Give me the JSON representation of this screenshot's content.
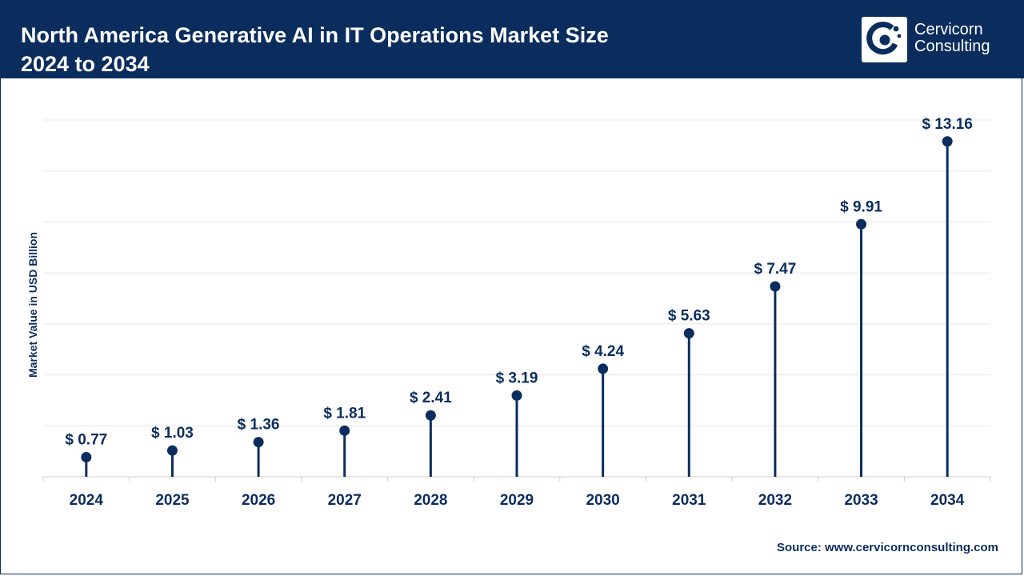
{
  "header": {
    "title_line1": "North America Generative AI in IT Operations Market Size",
    "title_line2": "2024 to 2034"
  },
  "brand": {
    "name_line1": "Cervicorn",
    "name_line2": "Consulting",
    "logo_icon": "cervicorn-c-logo-icon"
  },
  "colors": {
    "primary": "#0b2d5e",
    "grid": "#e6e6e6",
    "background": "#ffffff"
  },
  "source": "Source: www.cervicornconsulting.com",
  "chart_data": {
    "type": "lollipop",
    "title": "North America Generative AI in IT Operations Market Size 2024 to 2034",
    "xlabel": "",
    "ylabel": "Market Value in USD Billion",
    "categories": [
      "2024",
      "2025",
      "2026",
      "2027",
      "2028",
      "2029",
      "2030",
      "2031",
      "2032",
      "2033",
      "2034"
    ],
    "values": [
      0.77,
      1.03,
      1.36,
      1.81,
      2.41,
      3.19,
      4.24,
      5.63,
      7.47,
      9.91,
      13.16
    ],
    "labels": [
      "$ 0.77",
      "$ 1.03",
      "$ 1.36",
      "$ 1.81",
      "$ 2.41",
      "$ 3.19",
      "$ 4.24",
      "$ 5.63",
      "$ 7.47",
      "$ 9.91",
      "$ 13.16"
    ],
    "ylim": [
      0,
      14
    ],
    "grid": true,
    "legend": "none"
  }
}
